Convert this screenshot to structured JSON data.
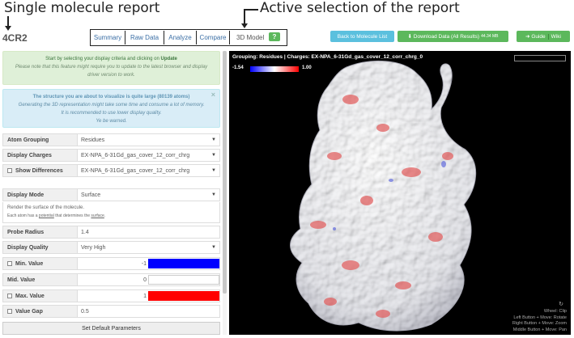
{
  "annotations": {
    "left": "Single molecule report",
    "right": "Active selection of the report"
  },
  "header": {
    "molecule_id": "4CR2",
    "tabs": [
      {
        "label": "Summary"
      },
      {
        "label": "Raw Data"
      },
      {
        "label": "Analyze"
      },
      {
        "label": "Compare"
      },
      {
        "label": "3D Model"
      }
    ],
    "active_tab": "3D Model",
    "help_glyph": "?",
    "back_button": "Back to Molecule List",
    "download_button": "Download Data (All Results)",
    "download_size": "44.34 MB",
    "guide_button": "Guide",
    "wiki_button": "Wiki"
  },
  "alerts": {
    "success_line1_prefix": "Start by selecting your display criteria and clicking on",
    "success_line1_link": "Update",
    "success_note": "Please note that this feature might require you to update to the latest browser and display driver version to work.",
    "info_head": "The structure you are about to visualize is quite large (80139 atoms)",
    "info_line1": "Generating the 3D representation might take some time and consume a lot of memory.",
    "info_line2": "It is recommended to use lower display quality.",
    "info_line3": "Ye be warned.",
    "close_glyph": "×"
  },
  "settings": {
    "atom_grouping": {
      "label": "Atom Grouping",
      "value": "Residues"
    },
    "display_charges": {
      "label": "Display Charges",
      "value": "EX-NPA_6-31Gd_gas_cover_12_corr_chrg"
    },
    "show_differences": {
      "label": "Show Differences",
      "value": "EX-NPA_6-31Gd_gas_cover_12_corr_chrg"
    },
    "display_mode": {
      "label": "Display Mode",
      "value": "Surface"
    },
    "mode_help_1": "Render the surface of the molecule.",
    "mode_help_2_a": "Each atom has a",
    "mode_help_2_b": "potential",
    "mode_help_2_c": "that determines the",
    "mode_help_2_d": "surface",
    "probe_radius": {
      "label": "Probe Radius",
      "value": "1.4"
    },
    "display_quality": {
      "label": "Display Quality",
      "value": "Very High"
    },
    "min_value": {
      "label": "Min. Value",
      "value": "-1",
      "color": "#0000ff"
    },
    "mid_value": {
      "label": "Mid. Value",
      "value": "0",
      "color": "#ffffff"
    },
    "max_value": {
      "label": "Max. Value",
      "value": "1",
      "color": "#ff0000"
    },
    "value_gap": {
      "label": "Value Gap",
      "value": "0.5"
    },
    "default_button": "Set Default Parameters"
  },
  "viewer": {
    "title": "Grouping: Residues | Charges: EX-NPA_6-31Gd_gas_cover_12_corr_chrg_0",
    "scale_min": "-1.54",
    "scale_max": "1.00",
    "help_1": "Wheel: Clip",
    "help_2": "Left Button + Move: Rotate",
    "help_3": "Right Button + Move: Zoom",
    "help_4": "Middle Button + Move: Pan",
    "colors": {
      "background": "#000000",
      "surface": "#f2f2f4",
      "positive": "#e05050",
      "negative": "#3040d0"
    }
  }
}
